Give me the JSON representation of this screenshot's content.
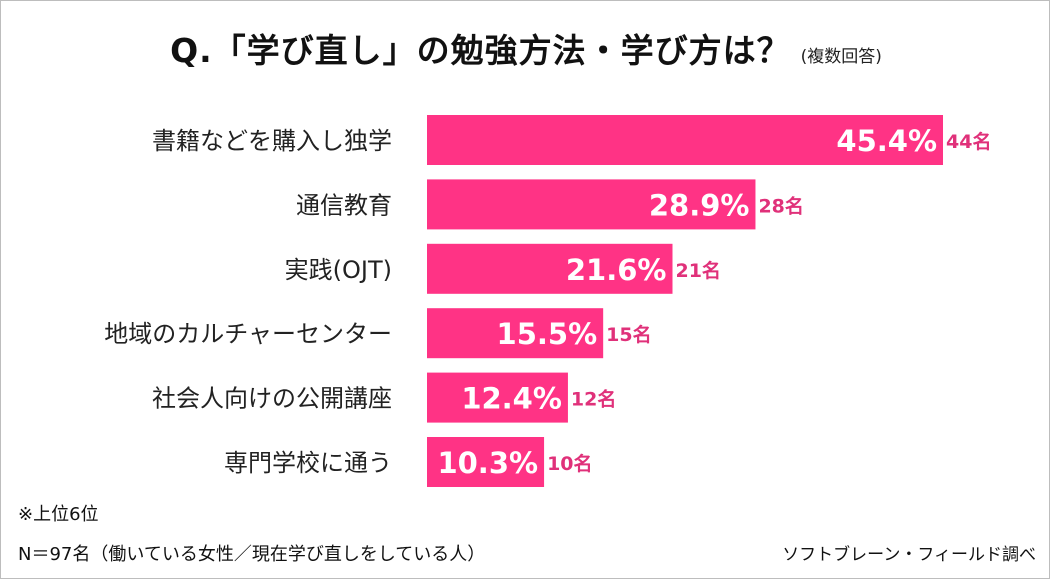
{
  "title": "Q.「学び直し」の勉強方法・学び方は？",
  "subtitle": "(複数回答)",
  "chart_data": {
    "type": "bar",
    "orientation": "horizontal",
    "categories": [
      "書籍などを購入し独学",
      "通信教育",
      "実践(OJT)",
      "地域のカルチャーセンター",
      "社会人向けの公開講座",
      "専門学校に通う"
    ],
    "values": [
      45.4,
      28.9,
      21.6,
      15.5,
      12.4,
      10.3
    ],
    "value_labels": [
      "45.4%",
      "28.9%",
      "21.6%",
      "15.5%",
      "12.4%",
      "10.3%"
    ],
    "counts": [
      "44名",
      "28名",
      "21名",
      "15名",
      "12名",
      "10名"
    ],
    "xlim": [
      0,
      45.4
    ],
    "bar_color": "#ff3385",
    "count_color": "#e0317a",
    "grid": false,
    "legend": "none"
  },
  "notes": {
    "rank": "※上位6位",
    "sample": "N＝97名（働いている女性／現在学び直しをしている人）"
  },
  "source": "ソフトブレーン・フィールド調べ"
}
